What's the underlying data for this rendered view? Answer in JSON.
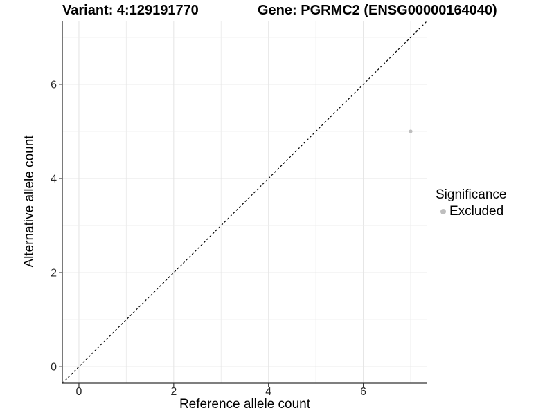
{
  "header": {
    "title_left": "Variant: 4:129191770",
    "title_right": "Gene: PGRMC2 (ENSG00000164040)"
  },
  "chart_data": {
    "type": "scatter",
    "xlabel": "Reference allele count",
    "ylabel": "Alternative allele count",
    "xlim": [
      -0.35,
      7.35
    ],
    "ylim": [
      -0.35,
      7.35
    ],
    "x_major_ticks": [
      0,
      2,
      4,
      6
    ],
    "y_major_ticks": [
      0,
      2,
      4,
      6
    ],
    "x_gridlines": [
      0,
      1,
      2,
      3,
      4,
      5,
      6,
      7
    ],
    "y_gridlines": [
      0,
      1,
      2,
      3,
      4,
      5,
      6,
      7
    ],
    "grid": true,
    "points": [
      {
        "x": 7,
        "y": 5,
        "significance": "Excluded",
        "color": "#bebebe",
        "radius": 2.6
      }
    ],
    "reference_line": {
      "slope": 1,
      "intercept": 0,
      "style": "dashed",
      "color": "#000000"
    },
    "legend": {
      "title": "Significance",
      "position": "right",
      "items": [
        {
          "label": "Excluded",
          "color": "#bebebe"
        }
      ]
    },
    "colors": {
      "background": "#ffffff",
      "grid_major": "#e4e4e4",
      "grid_minor": "#ededed",
      "axis_line": "#333333",
      "tick_mark": "#333333",
      "tick_label": "#262626"
    }
  }
}
